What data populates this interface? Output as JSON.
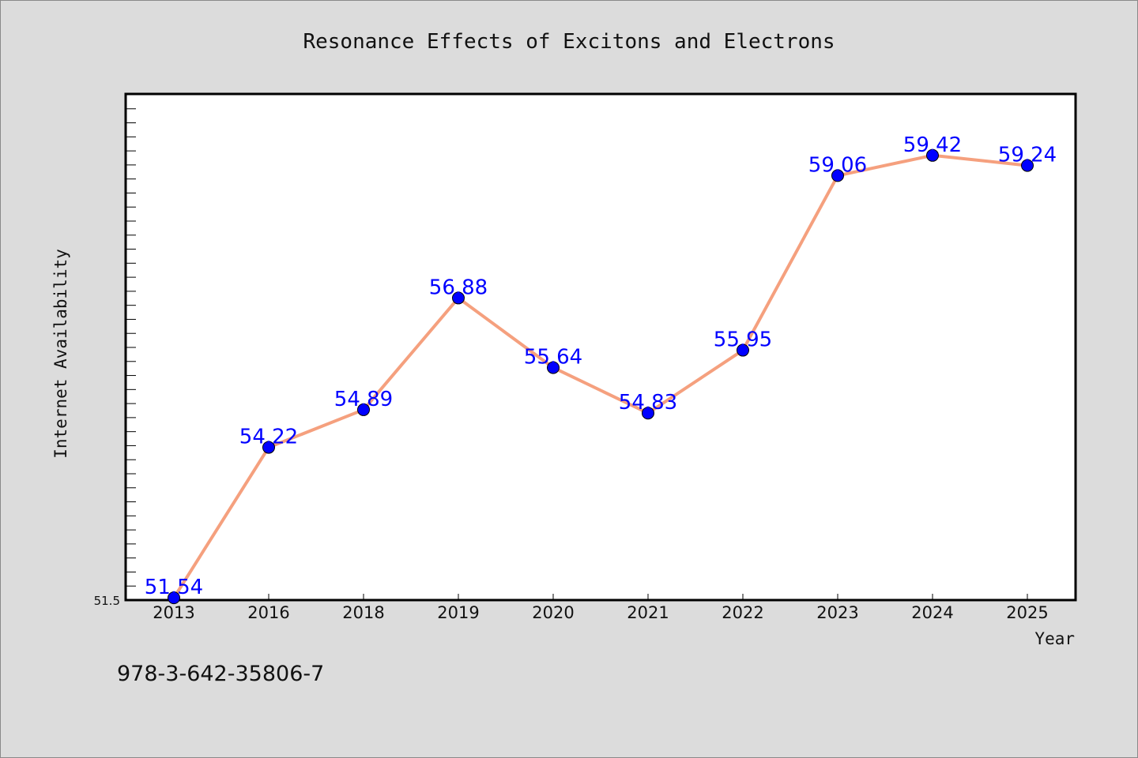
{
  "chart_data": {
    "type": "line",
    "title": "Resonance Effects of Excitons and Electrons",
    "xlabel": "Year",
    "ylabel": "Internet Availability",
    "categories": [
      "2013",
      "2016",
      "2018",
      "2019",
      "2020",
      "2021",
      "2022",
      "2023",
      "2024",
      "2025"
    ],
    "series": [
      {
        "values": [
          51.54,
          54.22,
          54.89,
          56.88,
          55.64,
          54.83,
          55.95,
          59.06,
          59.42,
          59.24
        ],
        "labels": [
          "51.54",
          "54.22",
          "54.89",
          "56.88",
          "55.64",
          "54.83",
          "55.95",
          "59.06",
          "59.42",
          "59.24"
        ]
      }
    ],
    "ylim": [
      51.5,
      60.5
    ],
    "yticks": [
      "51.5"
    ],
    "grid": false,
    "colors": {
      "line": "#f5a07e",
      "marker": "#0000ff",
      "label": "#0000ff",
      "background": "#dcdcdc",
      "plot_background": "#ffffff"
    }
  },
  "footer": {
    "identifier": "978-3-642-35806-7"
  }
}
